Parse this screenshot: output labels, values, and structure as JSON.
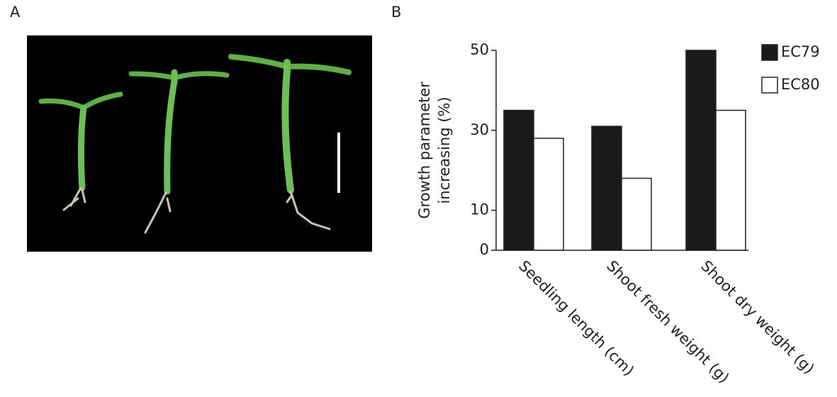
{
  "panel_a": {
    "label": "A"
  },
  "chart_data": {
    "type": "bar",
    "panel_label": "B",
    "ylabel": [
      "Growth parameter",
      "increasing (%)"
    ],
    "categories": [
      "Seedling length (cm)",
      "Shoot fresh weight (g)",
      "Shoot dry weight (g)"
    ],
    "series": [
      {
        "name": "EC79",
        "color": "#1a1a1a",
        "values": [
          35,
          31,
          50
        ]
      },
      {
        "name": "EC80",
        "color": "#ffffff",
        "values": [
          28,
          18,
          35
        ]
      }
    ],
    "ylim": [
      0,
      50
    ],
    "yticks": [
      0,
      10,
      30,
      50
    ],
    "legend": "top-right"
  }
}
